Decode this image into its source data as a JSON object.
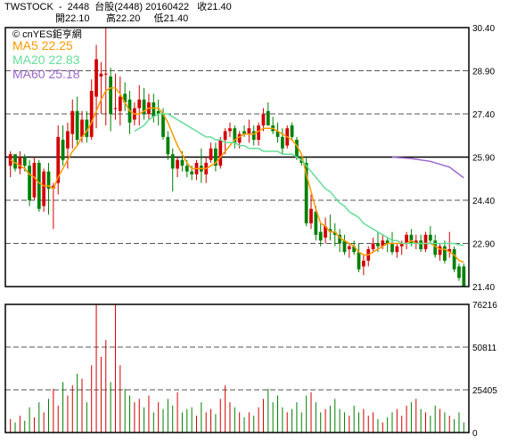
{
  "header": {
    "line1": "TWSTOCK  -  2448  台股(2448) 20160422   收21.40",
    "line2": "開22.10      高22.20     低21.40"
  },
  "legend": {
    "source": "© cnYES鉅亨網",
    "ma5": "MA5 22.25",
    "ma20": "MA20 22.83",
    "ma60": "MA60 25.18"
  },
  "colors": {
    "up": "#d40000",
    "down": "#008000",
    "ma5": "#ff9900",
    "ma20": "#66dd99",
    "ma60": "#9966cc",
    "grid": "#555555"
  },
  "chart_data": [
    {
      "type": "candlestick",
      "title": "TWSTOCK - 2448 台股(2448) 20160422",
      "ylim": [
        21.4,
        30.4
      ],
      "yticks": [
        "30.40",
        "28.90",
        "27.40",
        "25.90",
        "24.40",
        "22.90",
        "21.40"
      ],
      "reference_line": 25.9,
      "ohlc": [
        [
          25.6,
          26.1,
          25.2,
          26.0
        ],
        [
          26.0,
          26.0,
          25.4,
          25.5
        ],
        [
          25.5,
          26.1,
          25.3,
          25.9
        ],
        [
          25.9,
          26.0,
          25.4,
          25.6
        ],
        [
          25.6,
          25.8,
          24.2,
          24.4
        ],
        [
          24.5,
          25.9,
          24.4,
          25.7
        ],
        [
          25.7,
          25.8,
          24.0,
          24.1
        ],
        [
          24.2,
          25.5,
          24.0,
          25.4
        ],
        [
          25.4,
          25.7,
          23.9,
          24.8
        ],
        [
          24.8,
          25.0,
          23.4,
          24.9
        ],
        [
          25.0,
          27.0,
          24.6,
          26.6
        ],
        [
          26.5,
          27.0,
          25.6,
          25.8
        ],
        [
          26.2,
          27.1,
          25.5,
          26.8
        ],
        [
          26.7,
          27.9,
          26.2,
          27.5
        ],
        [
          27.5,
          28.0,
          26.3,
          26.5
        ],
        [
          26.6,
          27.5,
          26.4,
          27.2
        ],
        [
          27.2,
          27.5,
          26.4,
          26.6
        ],
        [
          26.6,
          28.6,
          26.5,
          28.2
        ],
        [
          28.0,
          29.8,
          26.9,
          29.3
        ],
        [
          28.7,
          29.2,
          27.4,
          28.8
        ],
        [
          28.8,
          30.4,
          27.0,
          28.8
        ],
        [
          28.7,
          29.0,
          26.8,
          27.4
        ],
        [
          27.6,
          28.8,
          27.2,
          27.6
        ],
        [
          27.5,
          28.7,
          27.0,
          28.0
        ],
        [
          28.1,
          28.5,
          27.5,
          27.8
        ],
        [
          27.9,
          28.2,
          26.7,
          27.1
        ],
        [
          27.2,
          27.8,
          27.0,
          27.6
        ],
        [
          27.6,
          28.4,
          27.0,
          27.9
        ],
        [
          27.9,
          28.3,
          27.2,
          27.4
        ],
        [
          27.4,
          28.1,
          27.2,
          27.8
        ],
        [
          27.8,
          28.1,
          27.1,
          27.3
        ],
        [
          27.5,
          27.9,
          27.0,
          27.4
        ],
        [
          27.4,
          27.6,
          26.5,
          26.6
        ],
        [
          26.6,
          26.8,
          25.8,
          26.0
        ],
        [
          26.0,
          26.2,
          24.7,
          25.5
        ],
        [
          25.5,
          25.9,
          25.2,
          25.8
        ],
        [
          25.8,
          26.1,
          25.4,
          25.6
        ],
        [
          25.6,
          25.8,
          25.2,
          25.4
        ],
        [
          25.4,
          25.6,
          25.1,
          25.3
        ],
        [
          25.3,
          25.8,
          25.1,
          25.7
        ],
        [
          25.6,
          26.2,
          25.0,
          25.4
        ],
        [
          25.3,
          25.9,
          25.0,
          25.7
        ],
        [
          25.8,
          26.4,
          25.7,
          26.2
        ],
        [
          26.2,
          26.4,
          25.4,
          25.6
        ],
        [
          25.6,
          26.6,
          25.5,
          26.5
        ],
        [
          26.5,
          26.9,
          26.0,
          26.8
        ],
        [
          26.8,
          27.1,
          26.6,
          26.9
        ],
        [
          26.9,
          27.0,
          26.2,
          26.4
        ],
        [
          26.4,
          26.8,
          26.2,
          26.7
        ],
        [
          26.8,
          27.0,
          26.6,
          26.7
        ],
        [
          26.7,
          27.2,
          26.4,
          26.9
        ],
        [
          26.8,
          27.0,
          26.3,
          26.5
        ],
        [
          26.5,
          27.1,
          26.3,
          27.0
        ],
        [
          27.0,
          27.6,
          26.8,
          27.4
        ],
        [
          27.5,
          27.8,
          27.0,
          27.0
        ],
        [
          27.0,
          27.3,
          26.7,
          26.8
        ],
        [
          26.8,
          27.1,
          26.4,
          26.6
        ],
        [
          26.6,
          26.9,
          26.0,
          26.2
        ],
        [
          26.3,
          27.0,
          26.2,
          26.9
        ],
        [
          27.0,
          27.1,
          26.5,
          26.6
        ],
        [
          26.5,
          26.6,
          25.8,
          25.9
        ],
        [
          25.9,
          26.0,
          25.6,
          25.7
        ],
        [
          25.7,
          25.9,
          23.5,
          23.6
        ],
        [
          23.6,
          24.6,
          23.4,
          24.1
        ],
        [
          24.0,
          24.2,
          23.0,
          23.2
        ],
        [
          23.3,
          23.6,
          22.8,
          23.0
        ],
        [
          23.1,
          23.8,
          22.9,
          23.5
        ],
        [
          23.4,
          23.9,
          23.0,
          23.3
        ],
        [
          23.3,
          23.6,
          22.8,
          23.2
        ],
        [
          23.2,
          23.4,
          22.6,
          22.9
        ],
        [
          23.0,
          23.2,
          22.5,
          22.6
        ],
        [
          22.7,
          22.9,
          22.4,
          22.8
        ],
        [
          22.8,
          23.0,
          22.5,
          22.6
        ],
        [
          22.6,
          22.9,
          21.9,
          22.0
        ],
        [
          22.1,
          22.5,
          21.8,
          22.3
        ],
        [
          22.3,
          22.8,
          22.1,
          22.7
        ],
        [
          22.7,
          23.1,
          22.6,
          22.9
        ],
        [
          22.9,
          23.3,
          22.6,
          22.8
        ],
        [
          22.8,
          23.2,
          22.7,
          23.0
        ],
        [
          23.0,
          23.1,
          22.6,
          22.9
        ],
        [
          22.9,
          23.3,
          22.5,
          22.6
        ],
        [
          22.6,
          22.9,
          22.4,
          22.8
        ],
        [
          22.8,
          23.0,
          22.5,
          22.9
        ],
        [
          22.9,
          23.3,
          22.7,
          23.2
        ],
        [
          23.2,
          23.4,
          22.8,
          22.9
        ],
        [
          22.9,
          23.2,
          22.7,
          23.0
        ],
        [
          23.0,
          23.2,
          22.6,
          22.7
        ],
        [
          22.7,
          23.3,
          22.6,
          23.2
        ],
        [
          23.2,
          23.5,
          22.9,
          23.0
        ],
        [
          23.0,
          23.2,
          22.4,
          22.5
        ],
        [
          22.5,
          22.9,
          22.3,
          22.8
        ],
        [
          22.8,
          23.0,
          22.2,
          22.3
        ],
        [
          22.6,
          23.3,
          22.4,
          22.7
        ],
        [
          22.7,
          22.8,
          21.9,
          22.0
        ],
        [
          22.1,
          22.2,
          21.6,
          21.7
        ],
        [
          22.1,
          22.2,
          21.4,
          21.4
        ]
      ],
      "ma5": [
        25.8,
        25.7,
        25.6,
        25.5,
        25.3,
        25.2,
        25.0,
        24.9,
        24.9,
        24.8,
        25.2,
        25.5,
        25.8,
        26.1,
        26.3,
        26.6,
        26.8,
        27.1,
        27.5,
        27.9,
        28.2,
        28.3,
        28.3,
        28.1,
        27.8,
        27.5,
        27.4,
        27.4,
        27.5,
        27.6,
        27.6,
        27.6,
        27.4,
        27.1,
        26.7,
        26.3,
        26.0,
        25.7,
        25.5,
        25.5,
        25.5,
        25.5,
        25.6,
        25.7,
        25.9,
        26.1,
        26.3,
        26.5,
        26.6,
        26.7,
        26.7,
        26.7,
        26.8,
        26.9,
        26.9,
        26.9,
        26.8,
        26.7,
        26.6,
        26.5,
        26.3,
        26.0,
        25.3,
        24.7,
        24.1,
        23.6,
        23.5,
        23.3,
        23.3,
        23.1,
        23.0,
        22.9,
        22.8,
        22.6,
        22.5,
        22.5,
        22.6,
        22.7,
        22.8,
        22.9,
        22.9,
        22.9,
        22.9,
        22.9,
        23.0,
        22.9,
        22.9,
        22.9,
        22.9,
        22.8,
        22.7,
        22.7,
        22.6,
        22.5,
        22.3,
        22.25
      ],
      "ma20": [
        null,
        null,
        null,
        null,
        null,
        null,
        null,
        null,
        null,
        null,
        null,
        null,
        null,
        null,
        null,
        null,
        null,
        null,
        null,
        null,
        null,
        null,
        null,
        null,
        null,
        null,
        26.8,
        26.9,
        27.0,
        27.2,
        27.3,
        27.4,
        27.4,
        27.4,
        27.3,
        27.2,
        27.1,
        27.0,
        26.9,
        26.8,
        26.7,
        26.6,
        26.6,
        26.5,
        26.5,
        26.4,
        26.4,
        26.4,
        26.3,
        26.3,
        26.2,
        26.2,
        26.2,
        26.1,
        26.1,
        26.1,
        26.1,
        26.0,
        26.0,
        26.0,
        25.9,
        25.8,
        25.6,
        25.4,
        25.2,
        25.0,
        24.8,
        24.7,
        24.5,
        24.3,
        24.2,
        24.0,
        23.9,
        23.8,
        23.6,
        23.5,
        23.4,
        23.3,
        23.2,
        23.1,
        23.0,
        23.0,
        22.9,
        22.9,
        22.9,
        22.9,
        22.9,
        22.9,
        22.9,
        22.9,
        22.9,
        22.9,
        22.9,
        22.9,
        22.85,
        22.83
      ],
      "ma60": [
        {
          "i": 80,
          "v": 25.9
        },
        {
          "i": 84,
          "v": 25.85
        },
        {
          "i": 88,
          "v": 25.75
        },
        {
          "i": 92,
          "v": 25.55
        },
        {
          "i": 95,
          "v": 25.18
        }
      ]
    },
    {
      "type": "bar",
      "title": "volume",
      "ylim": [
        0,
        76216
      ],
      "yticks": [
        "76216",
        "50811",
        "25405",
        "0"
      ],
      "values": [
        8000,
        6000,
        10000,
        7000,
        15000,
        9000,
        18000,
        12000,
        20000,
        26000,
        16000,
        30000,
        22000,
        28000,
        35000,
        32000,
        18000,
        40000,
        76216,
        45000,
        55000,
        30000,
        76216,
        40000,
        26000,
        22000,
        18000,
        20000,
        15000,
        22000,
        12000,
        18000,
        14000,
        20000,
        16000,
        24000,
        12000,
        14000,
        15000,
        10000,
        18000,
        12000,
        14000,
        11000,
        20000,
        28000,
        18000,
        15000,
        12000,
        9000,
        12000,
        10000,
        15000,
        20000,
        26000,
        18000,
        22000,
        15000,
        12000,
        14000,
        18000,
        12000,
        22000,
        24000,
        18000,
        12000,
        14000,
        16000,
        20000,
        14000,
        12000,
        10000,
        16000,
        12000,
        14000,
        10000,
        12000,
        8000,
        6000,
        9000,
        12000,
        14000,
        10000,
        16000,
        18000,
        20000,
        14000,
        12000,
        10000,
        16000,
        14000,
        12000,
        10000,
        8000,
        12000,
        6000
      ],
      "volume_up_flags": [
        1,
        0,
        1,
        0,
        0,
        1,
        0,
        1,
        0,
        1,
        1,
        0,
        1,
        1,
        0,
        1,
        0,
        1,
        1,
        1,
        1,
        0,
        1,
        1,
        0,
        0,
        1,
        1,
        0,
        1,
        0,
        1,
        0,
        0,
        0,
        1,
        0,
        0,
        0,
        1,
        0,
        1,
        1,
        0,
        1,
        1,
        1,
        0,
        1,
        0,
        1,
        0,
        1,
        1,
        0,
        0,
        0,
        0,
        1,
        0,
        0,
        0,
        0,
        1,
        0,
        0,
        1,
        0,
        0,
        0,
        0,
        1,
        0,
        0,
        1,
        1,
        1,
        0,
        1,
        0,
        0,
        1,
        1,
        1,
        0,
        1,
        0,
        1,
        0,
        0,
        1,
        0,
        1,
        0,
        0,
        0
      ]
    }
  ]
}
